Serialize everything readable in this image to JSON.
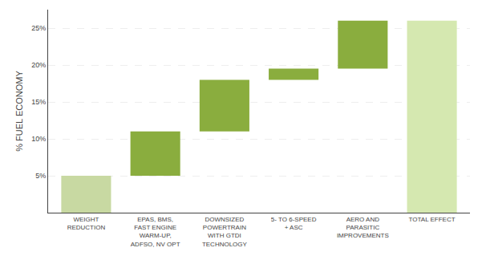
{
  "chart_data": {
    "type": "waterfall",
    "categories": [
      "WEIGHT\nREDUCTION",
      "EPAS, BMS,\nFAST ENGINE\nWARM-UP,\nADFSO, NV OPT",
      "DOWNSIZED\nPOWERTRAIN\nWITH GTDI\nTECHNOLOGY",
      "5- TO 6-SPEED\n+ ASC",
      "AERO AND\nPARASITIC\nIMPROVEMENTS",
      "TOTAL EFFECT"
    ],
    "values": [
      5,
      6,
      7,
      1.5,
      6.5,
      26
    ],
    "colors": [
      "#c8d9a2",
      "#8aad3e",
      "#8aad3e",
      "#8aad3e",
      "#8aad3e",
      "#d5e8b0"
    ],
    "ylabel": "% FUEL ECONOMY",
    "ylim": [
      0,
      27.5
    ],
    "yticks": [
      {
        "value": 5,
        "label": "5%"
      },
      {
        "value": 10,
        "label": "10%"
      },
      {
        "value": 15,
        "label": "15%"
      },
      {
        "value": 20,
        "label": "20%"
      },
      {
        "value": 25,
        "label": "25%"
      }
    ],
    "grid": true
  }
}
